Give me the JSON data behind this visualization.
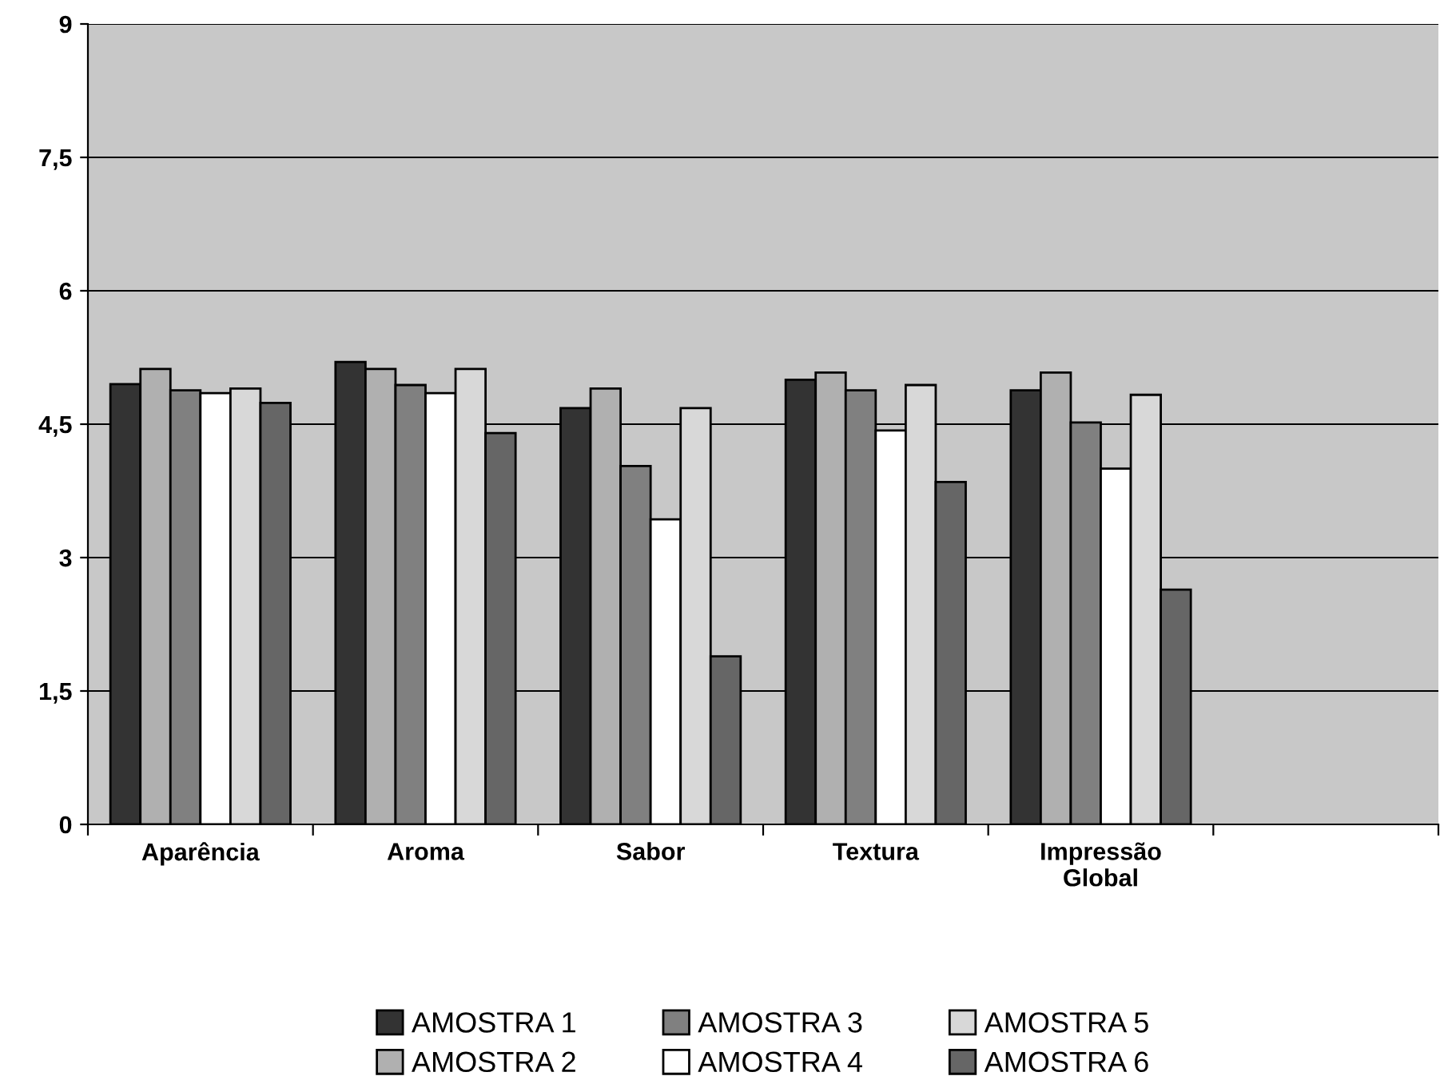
{
  "chart_data": {
    "type": "bar",
    "categories": [
      "Aparência",
      "Aroma",
      "Sabor",
      "Textura",
      "Impressão\nGlobal",
      null
    ],
    "series": [
      {
        "name": "AMOSTRA 1",
        "color": "#333333",
        "values": [
          4.95,
          5.2,
          4.68,
          5.0,
          4.88,
          null
        ]
      },
      {
        "name": "AMOSTRA 2",
        "color": "#b0b0b0",
        "values": [
          5.12,
          5.12,
          4.9,
          5.08,
          5.08,
          null
        ]
      },
      {
        "name": "AMOSTRA 3",
        "color": "#808080",
        "values": [
          4.88,
          4.94,
          4.03,
          4.88,
          4.52,
          null
        ]
      },
      {
        "name": "AMOSTRA 4",
        "color": "#ffffff",
        "values": [
          4.85,
          4.85,
          3.43,
          4.43,
          4.0,
          null
        ]
      },
      {
        "name": "AMOSTRA 5",
        "color": "#d8d8d8",
        "values": [
          4.9,
          5.12,
          4.68,
          4.94,
          4.83,
          null
        ]
      },
      {
        "name": "AMOSTRA 6",
        "color": "#666666",
        "values": [
          4.74,
          4.4,
          1.89,
          3.85,
          2.64,
          null
        ]
      }
    ],
    "ylim": [
      0,
      9
    ],
    "yticks": [
      0,
      {
        "value": 1.5,
        "label": "1,5"
      },
      3,
      {
        "value": 4.5,
        "label": "4,5"
      },
      6,
      {
        "value": 7.5,
        "label": "7,5"
      },
      9
    ],
    "grid": "y",
    "legend": "bottom"
  }
}
